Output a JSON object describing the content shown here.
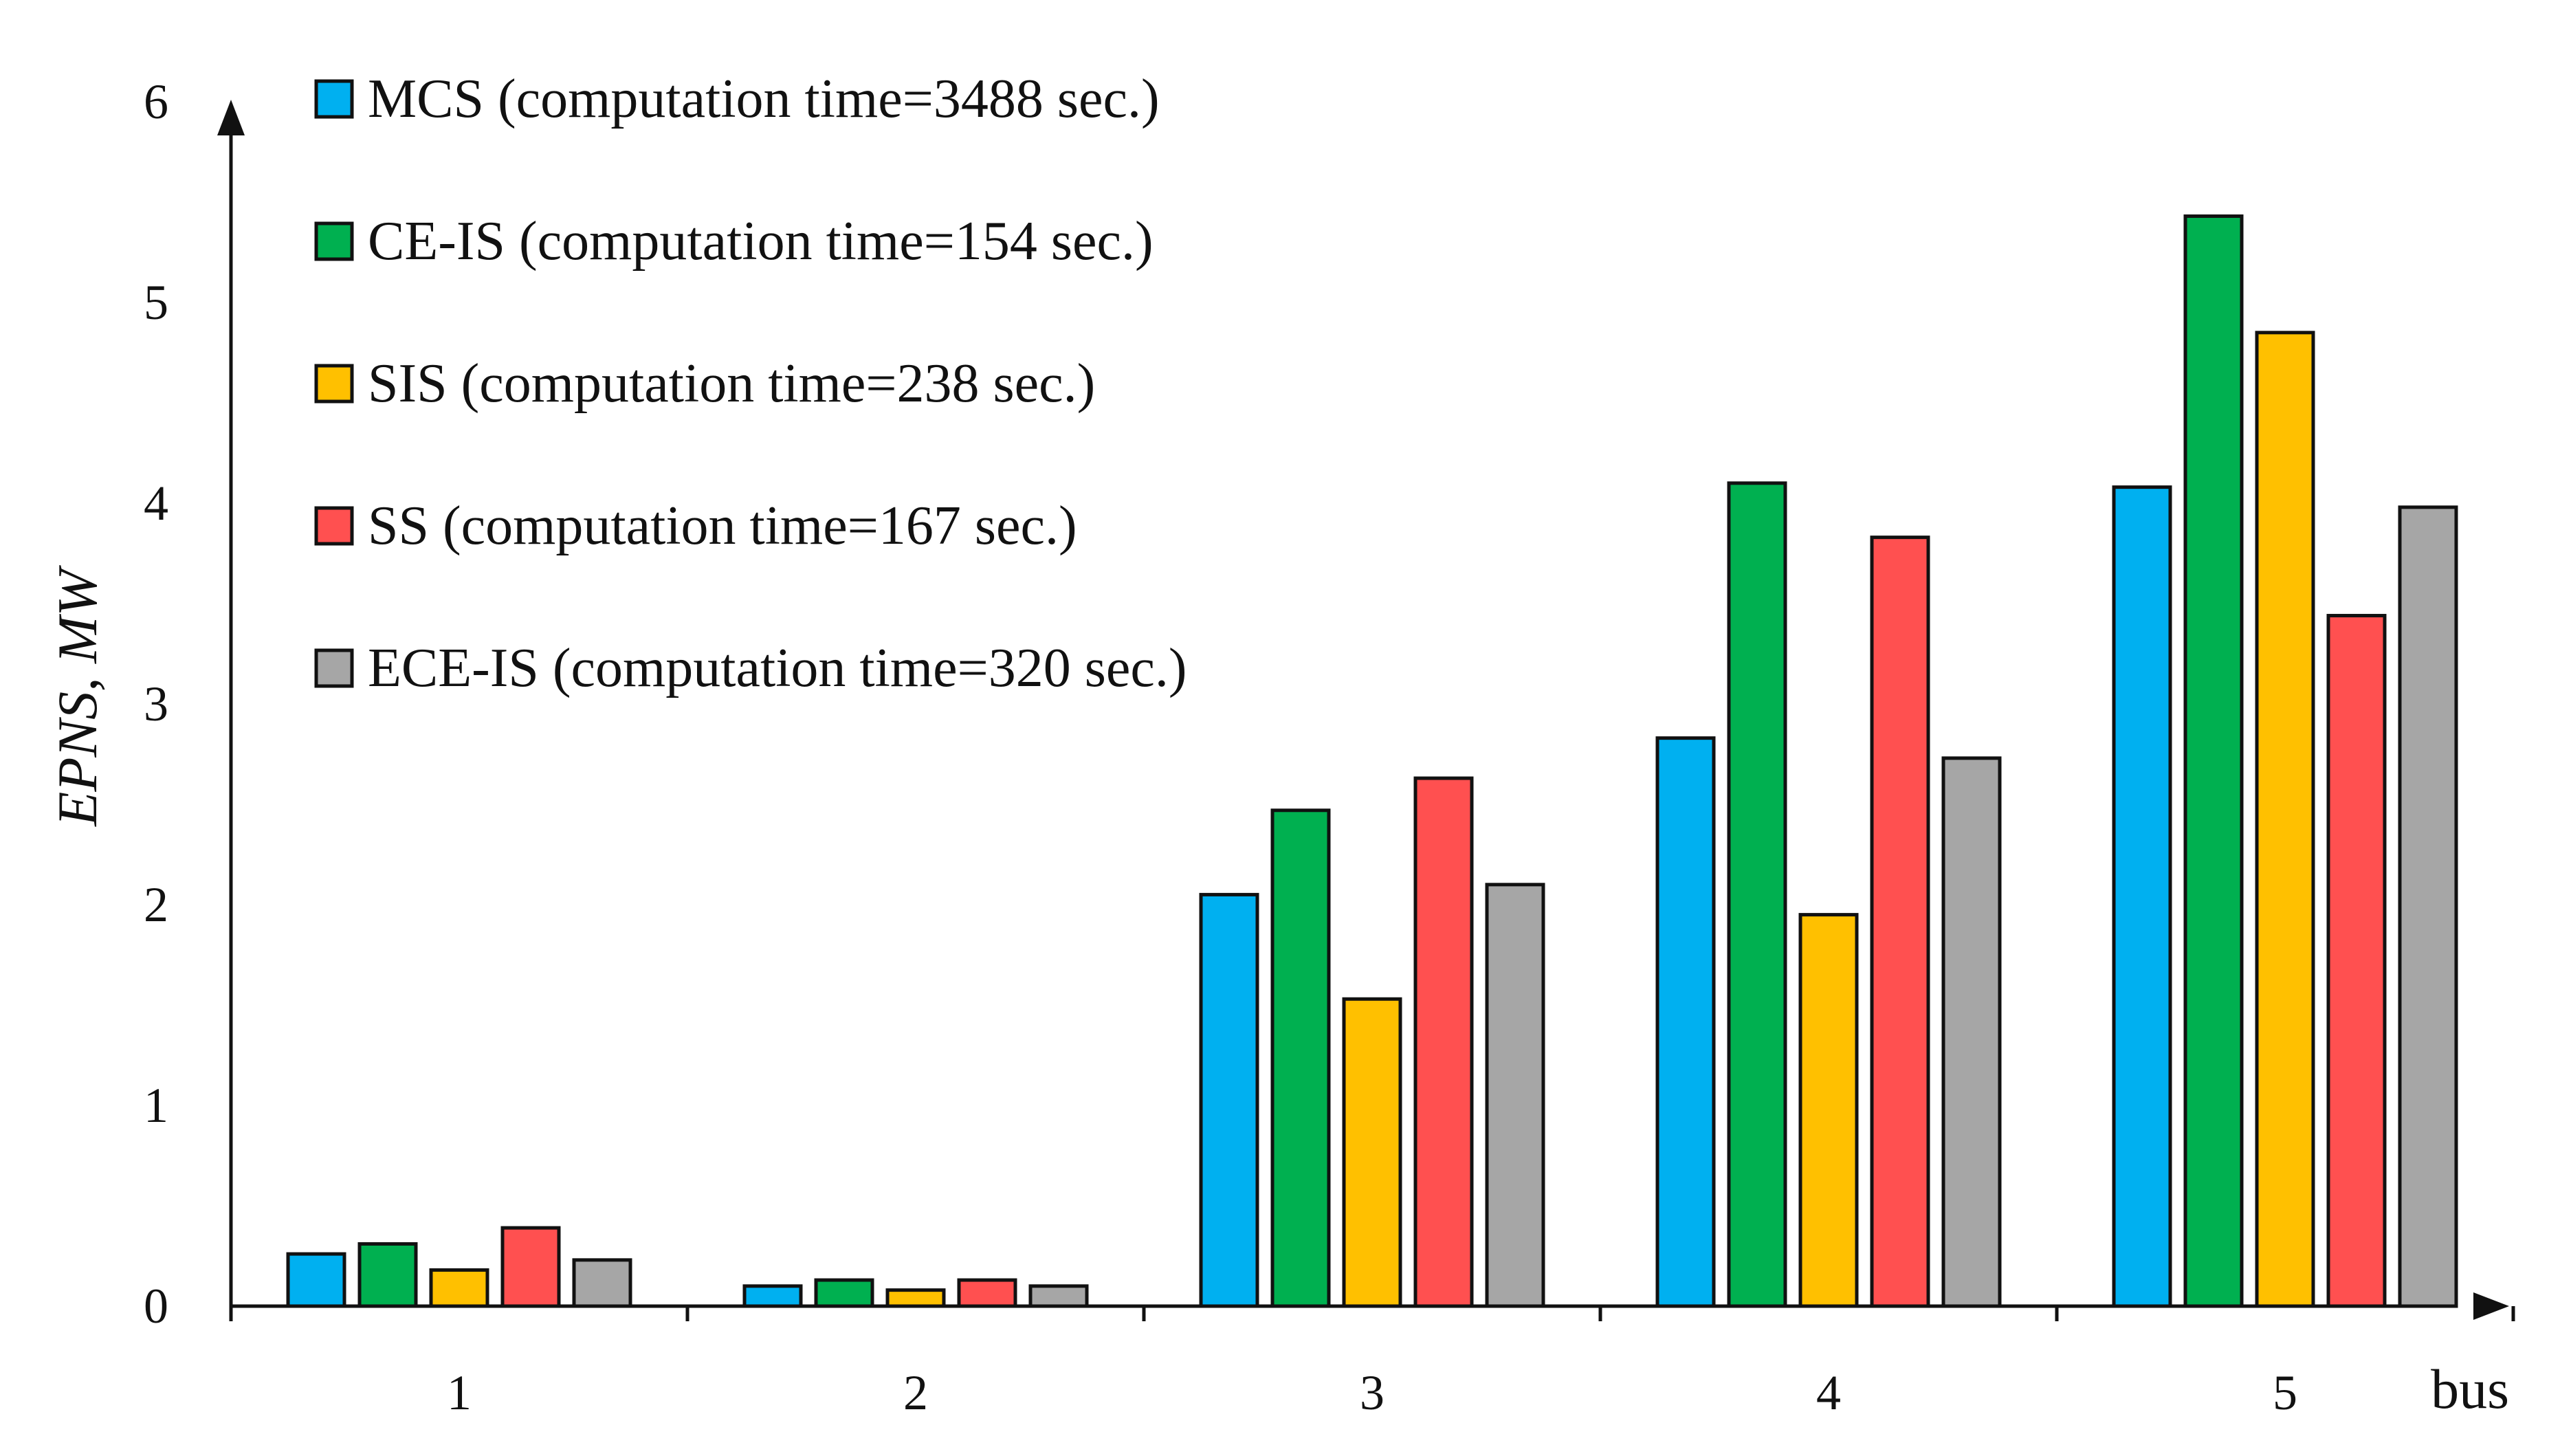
{
  "chart_data": {
    "type": "bar",
    "title": "",
    "xlabel": "bus",
    "ylabel": "EPNS, MW",
    "ylim": [
      0,
      6
    ],
    "yticks": [
      "0",
      "1",
      "2",
      "3",
      "4",
      "5",
      "6"
    ],
    "categories": [
      "1",
      "2",
      "3",
      "4",
      "5"
    ],
    "grid": false,
    "legend_position": "top-left",
    "series": [
      {
        "name": "MCS (computation time=3488 sec.)",
        "color": "#00b0f0",
        "values": [
          0.26,
          0.1,
          2.05,
          2.83,
          4.08
        ]
      },
      {
        "name": "CE-IS (computation time=154 sec.)",
        "color": "#00b050",
        "values": [
          0.31,
          0.13,
          2.47,
          4.1,
          5.43
        ]
      },
      {
        "name": "SIS (computation time=238 sec.)",
        "color": "#ffc000",
        "values": [
          0.18,
          0.08,
          1.53,
          1.95,
          4.85
        ]
      },
      {
        "name": "SS (computation time=167 sec.)",
        "color": "#ff5050",
        "values": [
          0.39,
          0.13,
          2.63,
          3.83,
          3.44
        ]
      },
      {
        "name": "ECE-IS (computation time=320 sec.)",
        "color": "#a6a6a6",
        "values": [
          0.23,
          0.1,
          2.1,
          2.73,
          3.98
        ]
      }
    ]
  }
}
